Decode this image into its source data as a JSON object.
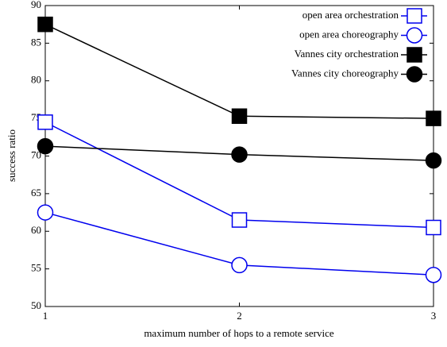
{
  "chart_data": {
    "type": "line",
    "x_label": "maximum number of hops to a remote service",
    "y_label": "success ratio",
    "x": [
      1,
      2,
      3
    ],
    "xlim": [
      1,
      3
    ],
    "xticks": [
      1,
      2,
      3
    ],
    "ylim": [
      50,
      90
    ],
    "yticks": [
      50,
      55,
      60,
      65,
      70,
      75,
      80,
      85,
      90
    ],
    "legend": "top-right",
    "series": [
      {
        "name": "open area orchestration",
        "color": "#0000ee",
        "marker": "square",
        "filled": false,
        "values": [
          74.5,
          61.5,
          60.5
        ]
      },
      {
        "name": "open area choreography",
        "color": "#0000ee",
        "marker": "circle",
        "filled": false,
        "values": [
          62.5,
          55.5,
          54.2
        ]
      },
      {
        "name": "Vannes city orchestration",
        "color": "#000000",
        "marker": "square",
        "filled": true,
        "values": [
          87.5,
          75.3,
          75.0
        ]
      },
      {
        "name": "Vannes city choreography",
        "color": "#000000",
        "marker": "circle",
        "filled": true,
        "values": [
          71.3,
          70.2,
          69.4
        ]
      }
    ]
  }
}
